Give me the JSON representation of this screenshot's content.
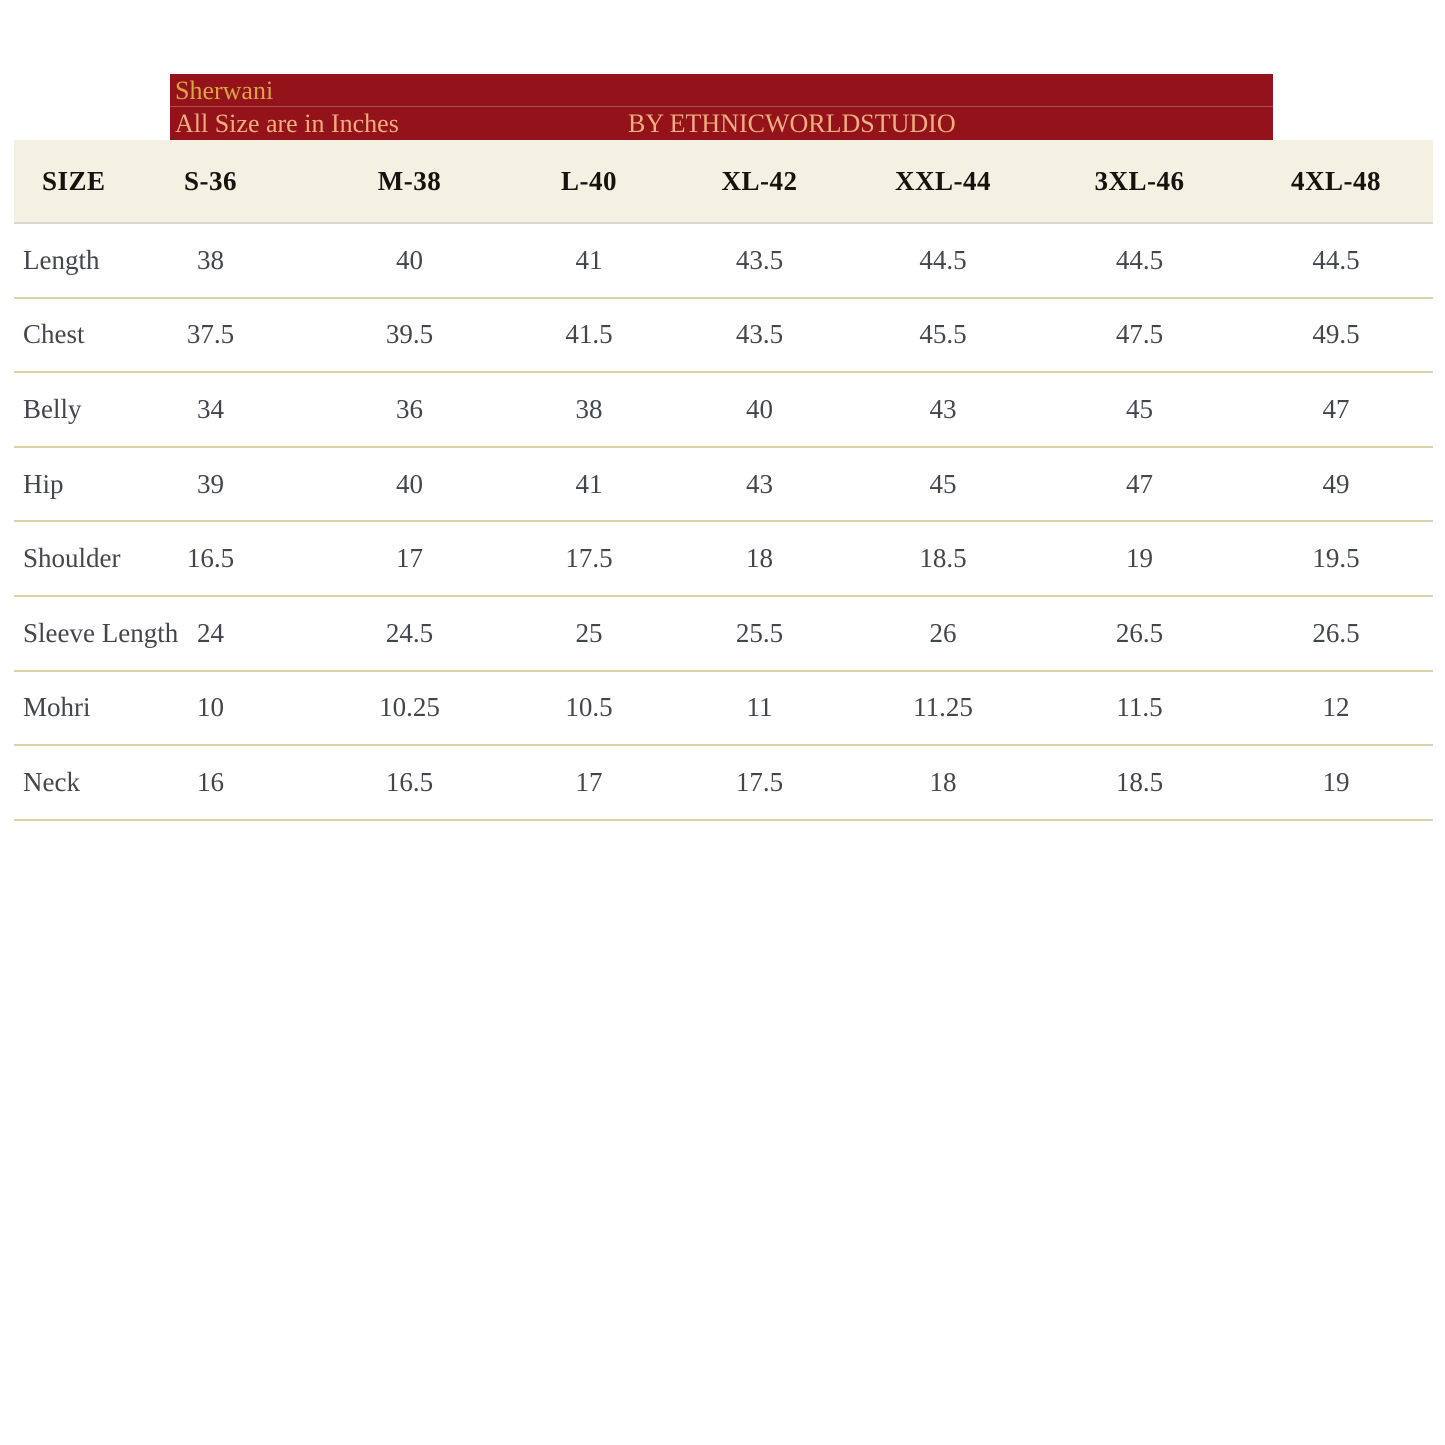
{
  "banner": {
    "title": "Sherwani",
    "subtitle": "All Size are in Inches",
    "byline": "BY ETHNICWORLDSTUDIO"
  },
  "table": {
    "columns": [
      "SIZE",
      "S-36",
      "M-38",
      "L-40",
      "XL-42",
      "XXL-44",
      "3XL-46",
      "4XL-48"
    ],
    "rows": [
      {
        "label": "Length",
        "values": [
          "38",
          "40",
          "41",
          "43.5",
          "44.5",
          "44.5",
          "44.5"
        ]
      },
      {
        "label": "Chest",
        "values": [
          "37.5",
          "39.5",
          "41.5",
          "43.5",
          "45.5",
          "47.5",
          "49.5"
        ]
      },
      {
        "label": "Belly",
        "values": [
          "34",
          "36",
          "38",
          "40",
          "43",
          "45",
          "47"
        ]
      },
      {
        "label": "Hip",
        "values": [
          "39",
          "40",
          "41",
          "43",
          "45",
          "47",
          "49"
        ]
      },
      {
        "label": "Shoulder",
        "values": [
          "16.5",
          "17",
          "17.5",
          "18",
          "18.5",
          "19",
          "19.5"
        ]
      },
      {
        "label": "Sleeve Length",
        "values": [
          "24",
          "24.5",
          "25",
          "25.5",
          "26",
          "26.5",
          "26.5"
        ]
      },
      {
        "label": "Mohri",
        "values": [
          "10",
          "10.25",
          "10.5",
          "11",
          "11.25",
          "11.5",
          "12"
        ]
      },
      {
        "label": "Neck",
        "values": [
          "16",
          "16.5",
          "17",
          "17.5",
          "18",
          "18.5",
          "19"
        ]
      }
    ]
  },
  "colors": {
    "banner_bg": "#94121a",
    "banner_title_text": "#d8a548",
    "banner_sub_text": "#efae7f",
    "header_bg": "#f4f0e2",
    "header_text": "#16120d",
    "header_border": "#d8d7d2",
    "body_text": "#42464d",
    "row_border": "#ddd2a6"
  }
}
